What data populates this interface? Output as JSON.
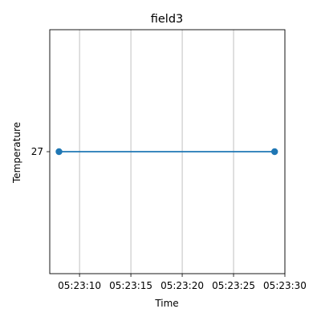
{
  "chart_data": {
    "type": "line",
    "title": "field3",
    "xlabel": "Time",
    "ylabel": "Temperature",
    "x_tick_labels": [
      "05:23:10",
      "05:23:15",
      "05:23:20",
      "05:23:25",
      "05:23:30"
    ],
    "y_tick_labels": [
      "27"
    ],
    "y_ticks": [
      27
    ],
    "ylim": [
      26.94,
      27.06
    ],
    "x_ticks_seconds": [
      10,
      15,
      20,
      25,
      30
    ],
    "xlim_seconds": [
      7.1,
      30.0
    ],
    "grid": "x-axis vertical lines only",
    "series": [
      {
        "color": "#1f77b4",
        "x": [
          "05:23:08",
          "05:23:29"
        ],
        "y": [
          27,
          27
        ]
      }
    ]
  }
}
